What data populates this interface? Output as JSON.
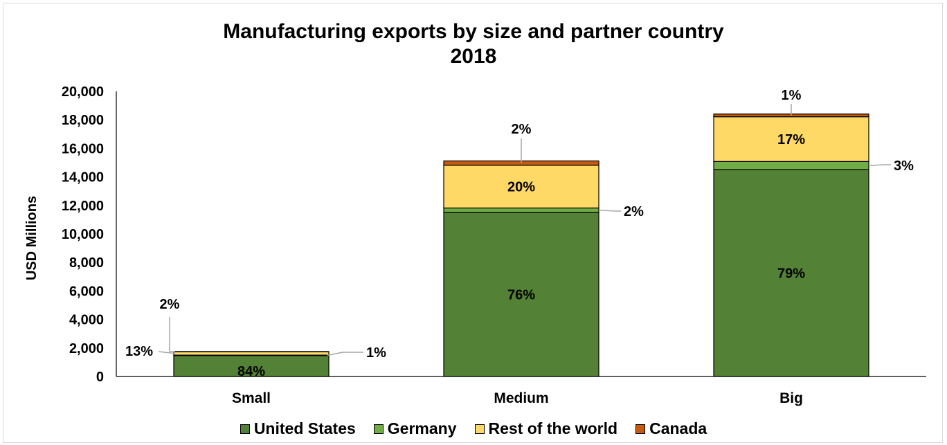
{
  "chart_data": {
    "type": "bar",
    "stacked": true,
    "title_lines": [
      "Manufacturing exports by size and partner country",
      "2018"
    ],
    "xlabel": "",
    "ylabel": "USD Millions",
    "ylim": [
      0,
      20000
    ],
    "yticks": [
      "0",
      "2,000",
      "4,000",
      "6,000",
      "8,000",
      "10,000",
      "12,000",
      "14,000",
      "16,000",
      "18,000",
      "20,000"
    ],
    "ytick_values": [
      0,
      2000,
      4000,
      6000,
      8000,
      10000,
      12000,
      14000,
      16000,
      18000,
      20000
    ],
    "categories": [
      "Small",
      "Medium",
      "Big"
    ],
    "series": [
      {
        "name": "United States",
        "color": "#538135",
        "values": [
          1470,
          11520,
          14520
        ],
        "labels": [
          "84%",
          "76%",
          "79%"
        ]
      },
      {
        "name": "Germany",
        "color": "#70ad47",
        "values": [
          30,
          300,
          560
        ],
        "labels": [
          "2%",
          "2%",
          "3%"
        ]
      },
      {
        "name": "Rest of the world",
        "color": "#ffd966",
        "values": [
          230,
          3000,
          3140
        ],
        "labels": [
          "13%",
          "20%",
          "17%"
        ]
      },
      {
        "name": "Canada",
        "color": "#c55a11",
        "values": [
          20,
          300,
          190
        ],
        "labels": [
          "1%",
          "2%",
          "1%"
        ]
      }
    ],
    "grid": false,
    "legend_position": "bottom"
  }
}
